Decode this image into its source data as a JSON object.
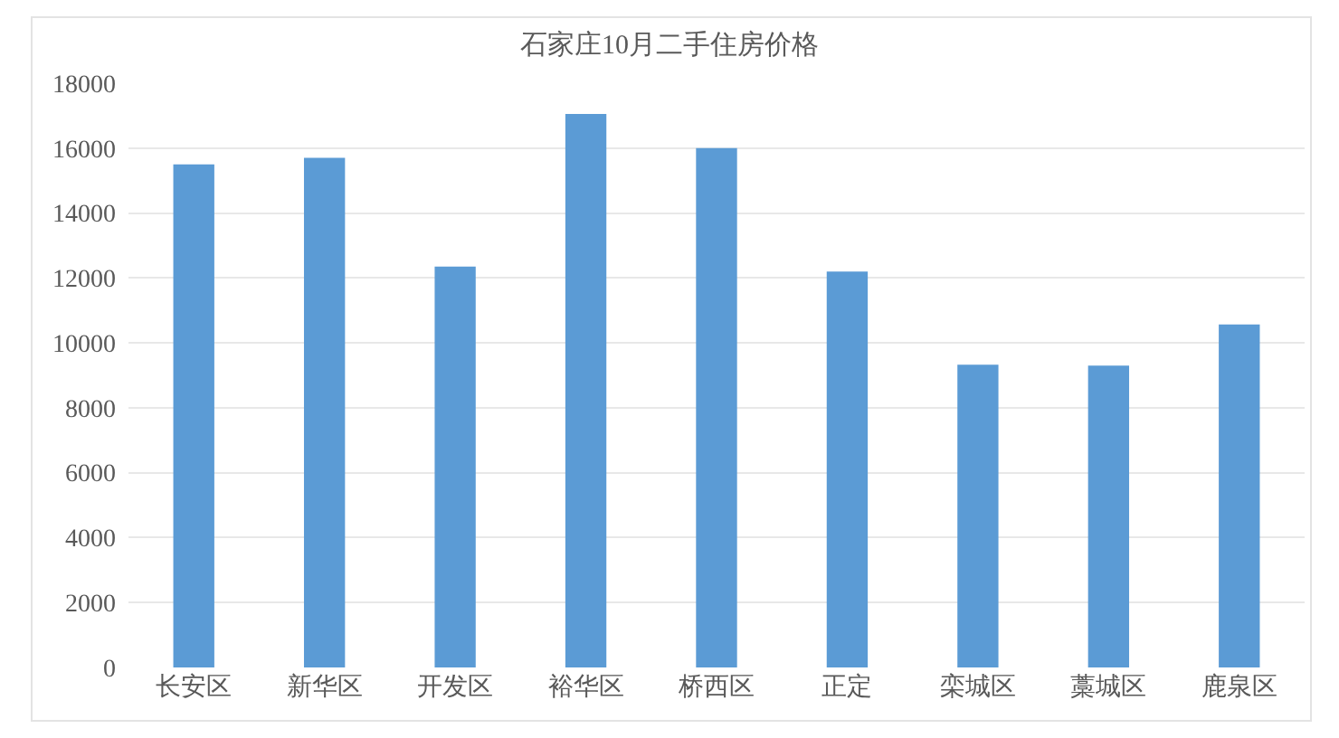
{
  "chart_data": {
    "type": "bar",
    "title": "石家庄10月二手住房价格",
    "categories": [
      "长安区",
      "新华区",
      "开发区",
      "裕华区",
      "桥西区",
      "正定",
      "栾城区",
      "藁城区",
      "鹿泉区"
    ],
    "values": [
      15500,
      15700,
      12350,
      17050,
      16000,
      12200,
      9330,
      9300,
      10570
    ],
    "color": "#5b9bd5",
    "ylim": [
      0,
      18000
    ],
    "yticks": [
      0,
      2000,
      4000,
      6000,
      8000,
      10000,
      12000,
      14000,
      16000,
      18000
    ],
    "grid": "y"
  }
}
